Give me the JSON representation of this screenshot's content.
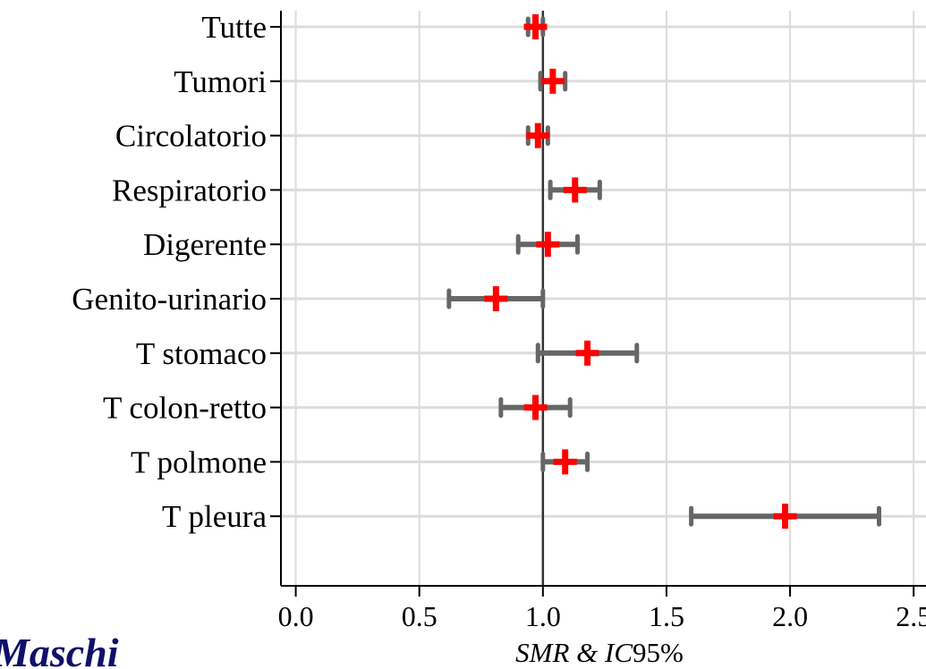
{
  "chart_data": {
    "type": "forest",
    "xlabel_italic": "SMR & IC",
    "xlabel_normal": "95%",
    "xlim": [
      -0.06,
      2.55
    ],
    "reference_line": 1.0,
    "x_ticks": [
      {
        "value": 0.0,
        "label": "0.0"
      },
      {
        "value": 0.5,
        "label": "0.5"
      },
      {
        "value": 1.0,
        "label": "1.0"
      },
      {
        "value": 1.5,
        "label": "1.5"
      },
      {
        "value": 2.0,
        "label": "2.0"
      },
      {
        "value": 2.5,
        "label": "2.5"
      }
    ],
    "rows": [
      {
        "label": "Tutte",
        "estimate": 0.97,
        "lower": 0.94,
        "upper": 1.0
      },
      {
        "label": "Tumori",
        "estimate": 1.04,
        "lower": 0.99,
        "upper": 1.09
      },
      {
        "label": "Circolatorio",
        "estimate": 0.98,
        "lower": 0.94,
        "upper": 1.02
      },
      {
        "label": "Respiratorio",
        "estimate": 1.13,
        "lower": 1.03,
        "upper": 1.23
      },
      {
        "label": "Digerente",
        "estimate": 1.02,
        "lower": 0.9,
        "upper": 1.14
      },
      {
        "label": "Genito-urinario",
        "estimate": 0.81,
        "lower": 0.62,
        "upper": 1.0
      },
      {
        "label": "T stomaco",
        "estimate": 1.18,
        "lower": 0.98,
        "upper": 1.38
      },
      {
        "label": "T colon-retto",
        "estimate": 0.97,
        "lower": 0.83,
        "upper": 1.11
      },
      {
        "label": "T polmone",
        "estimate": 1.09,
        "lower": 1.0,
        "upper": 1.18
      },
      {
        "label": "T pleura",
        "estimate": 1.98,
        "lower": 1.6,
        "upper": 2.36
      }
    ],
    "colors": {
      "point": "#ff0000",
      "interval": "#666666",
      "grid": "#dcdcdc",
      "reference_line": "#333333",
      "axis": "#000000"
    },
    "grid": true,
    "legend": false
  },
  "watermark": {
    "text": "Maschi"
  }
}
